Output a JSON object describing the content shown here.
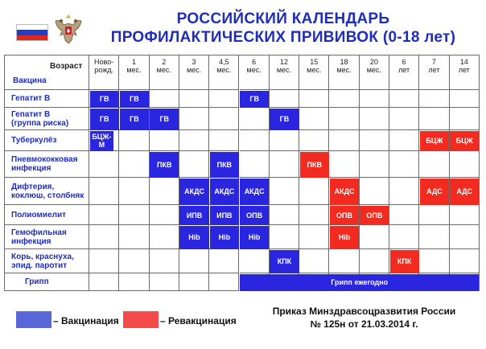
{
  "header": {
    "title_line1": "РОССИЙСКИЙ КАЛЕНДАРЬ",
    "title_line2": "ПРОФИЛАКТИЧЕСКИХ ПРИВИВОК (0-18 лет)"
  },
  "table": {
    "age_label": "Возраст",
    "vaccine_label": "Вакцина",
    "columns": [
      [
        "Ново-",
        "рожд."
      ],
      [
        "1",
        "мес."
      ],
      [
        "2",
        "мес."
      ],
      [
        "3",
        "мес."
      ],
      [
        "4,5",
        "мес."
      ],
      [
        "6",
        "мес."
      ],
      [
        "12",
        "мес."
      ],
      [
        "15",
        "мес."
      ],
      [
        "18",
        "мес."
      ],
      [
        "20",
        "мес."
      ],
      [
        "6",
        "лет"
      ],
      [
        "7",
        "лет"
      ],
      [
        "14",
        "лет"
      ]
    ],
    "rows": [
      {
        "label": [
          "Гепатит В"
        ]
      },
      {
        "label": [
          "Гепатит В",
          "(группа риска)"
        ]
      },
      {
        "label": [
          "Туберкулёз"
        ]
      },
      {
        "label": [
          "Пневмококковая",
          "инфекция"
        ]
      },
      {
        "label": [
          "Дифтерия,",
          "коклюш, столбняк"
        ]
      },
      {
        "label": [
          "Полиомиелит"
        ]
      },
      {
        "label": [
          "Гемофильная",
          "инфекция"
        ]
      },
      {
        "label": [
          "Корь, краснуха,",
          "эпид. паротит"
        ]
      },
      {
        "label": [
          "Грипп"
        ]
      }
    ],
    "cells": [
      {
        "row": 0,
        "col": 0,
        "span": 1,
        "kind": "vaccination",
        "text": "ГВ"
      },
      {
        "row": 0,
        "col": 1,
        "span": 1,
        "kind": "vaccination",
        "text": "ГВ"
      },
      {
        "row": 0,
        "col": 5,
        "span": 1,
        "kind": "vaccination",
        "text": "ГВ"
      },
      {
        "row": 1,
        "col": 0,
        "span": 1,
        "kind": "vaccination",
        "text": "ГВ"
      },
      {
        "row": 1,
        "col": 1,
        "span": 1,
        "kind": "vaccination",
        "text": "ГВ"
      },
      {
        "row": 1,
        "col": 2,
        "span": 1,
        "kind": "vaccination",
        "text": "ГВ"
      },
      {
        "row": 1,
        "col": 6,
        "span": 1,
        "kind": "vaccination",
        "text": "ГВ"
      },
      {
        "row": 2,
        "col": 0,
        "span": 1,
        "kind": "vaccination",
        "text": "БЦЖ-М"
      },
      {
        "row": 2,
        "col": 11,
        "span": 1,
        "kind": "revaccination",
        "text": "БЦЖ"
      },
      {
        "row": 2,
        "col": 12,
        "span": 1,
        "kind": "revaccination",
        "text": "БЦЖ"
      },
      {
        "row": 3,
        "col": 2,
        "span": 1,
        "kind": "vaccination",
        "text": "ПКВ"
      },
      {
        "row": 3,
        "col": 4,
        "span": 1,
        "kind": "vaccination",
        "text": "ПКВ"
      },
      {
        "row": 3,
        "col": 7,
        "span": 1,
        "kind": "revaccination",
        "text": "ПКВ"
      },
      {
        "row": 4,
        "col": 3,
        "span": 1,
        "kind": "vaccination",
        "text": "АКДС"
      },
      {
        "row": 4,
        "col": 4,
        "span": 1,
        "kind": "vaccination",
        "text": "АКДС"
      },
      {
        "row": 4,
        "col": 5,
        "span": 1,
        "kind": "vaccination",
        "text": "АКДС"
      },
      {
        "row": 4,
        "col": 8,
        "span": 1,
        "kind": "revaccination",
        "text": "АКДС"
      },
      {
        "row": 4,
        "col": 11,
        "span": 1,
        "kind": "revaccination",
        "text": "АДС"
      },
      {
        "row": 4,
        "col": 12,
        "span": 1,
        "kind": "revaccination",
        "text": "АДС"
      },
      {
        "row": 5,
        "col": 3,
        "span": 1,
        "kind": "vaccination",
        "text": "ИПВ"
      },
      {
        "row": 5,
        "col": 4,
        "span": 1,
        "kind": "vaccination",
        "text": "ИПВ"
      },
      {
        "row": 5,
        "col": 5,
        "span": 1,
        "kind": "vaccination",
        "text": "ОПВ"
      },
      {
        "row": 5,
        "col": 8,
        "span": 1,
        "kind": "revaccination",
        "text": "ОПВ"
      },
      {
        "row": 5,
        "col": 9,
        "span": 1,
        "kind": "revaccination",
        "text": "ОПВ"
      },
      {
        "row": 6,
        "col": 3,
        "span": 1,
        "kind": "vaccination",
        "text": "Hib"
      },
      {
        "row": 6,
        "col": 4,
        "span": 1,
        "kind": "vaccination",
        "text": "Hib"
      },
      {
        "row": 6,
        "col": 5,
        "span": 1,
        "kind": "vaccination",
        "text": "Hib"
      },
      {
        "row": 6,
        "col": 8,
        "span": 1,
        "kind": "revaccination",
        "text": "Hib"
      },
      {
        "row": 7,
        "col": 6,
        "span": 1,
        "kind": "vaccination",
        "text": "КПК"
      },
      {
        "row": 7,
        "col": 10,
        "span": 1,
        "kind": "revaccination",
        "text": "КПК"
      },
      {
        "row": 8,
        "col": 5,
        "span": 8,
        "kind": "vaccination",
        "text": "Грипп ежегодно"
      }
    ]
  },
  "legend": {
    "vaccination": "– Вакцинация",
    "revaccination": "– Ревакцинация"
  },
  "order": {
    "line1": "Приказ Минздравсоцразвития России",
    "line2": "№ 125н от 21.03.2014 г."
  },
  "colors": {
    "vaccination": "#2a26e0",
    "revaccination": "#f22a1f",
    "legend_vaccination": "#5a67d8",
    "legend_revaccination": "#f54a4a",
    "title": "#1f2dbb"
  }
}
